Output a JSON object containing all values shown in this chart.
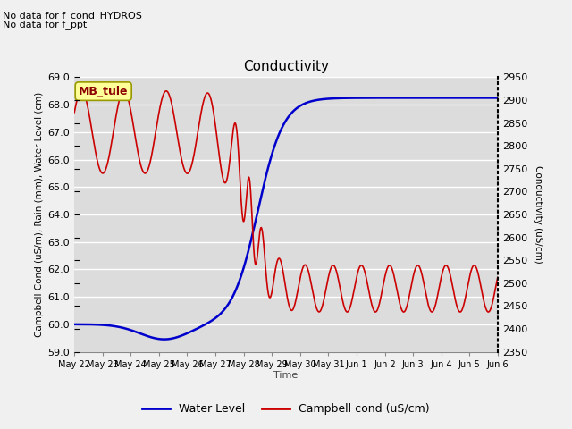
{
  "title": "Conductivity",
  "xlabel": "Time",
  "ylabel_left": "Campbell Cond (uS/m), Rain (mm), Water Level (cm)",
  "ylabel_right": "Conductivity (uS/cm)",
  "ylim_left": [
    59.0,
    69.0
  ],
  "ylim_right": [
    2350,
    2950
  ],
  "annotation_line1": "No data for f_cond_HYDROS",
  "annotation_line2": "No data for f_ppt",
  "legend_box_label": "MB_tule",
  "bg_color": "#e0e0e0",
  "grid_color": "#ffffff",
  "x_ticks": [
    "May 22",
    "May 23",
    "May 24",
    "May 25",
    "May 26",
    "May 27",
    "May 28",
    "May 29",
    "May 30",
    "May 31",
    "Jun 1",
    "Jun 2",
    "Jun 3",
    "Jun 4",
    "Jun 5",
    "Jun 6"
  ],
  "water_level_color": "#0000cc",
  "campbell_color": "#cc0000",
  "yticks_left": [
    59.0,
    60.0,
    61.0,
    62.0,
    63.0,
    64.0,
    65.0,
    66.0,
    67.0,
    68.0,
    69.0
  ],
  "yticks_right": [
    2350,
    2400,
    2450,
    2500,
    2550,
    2600,
    2650,
    2700,
    2750,
    2800,
    2850,
    2900,
    2950
  ]
}
